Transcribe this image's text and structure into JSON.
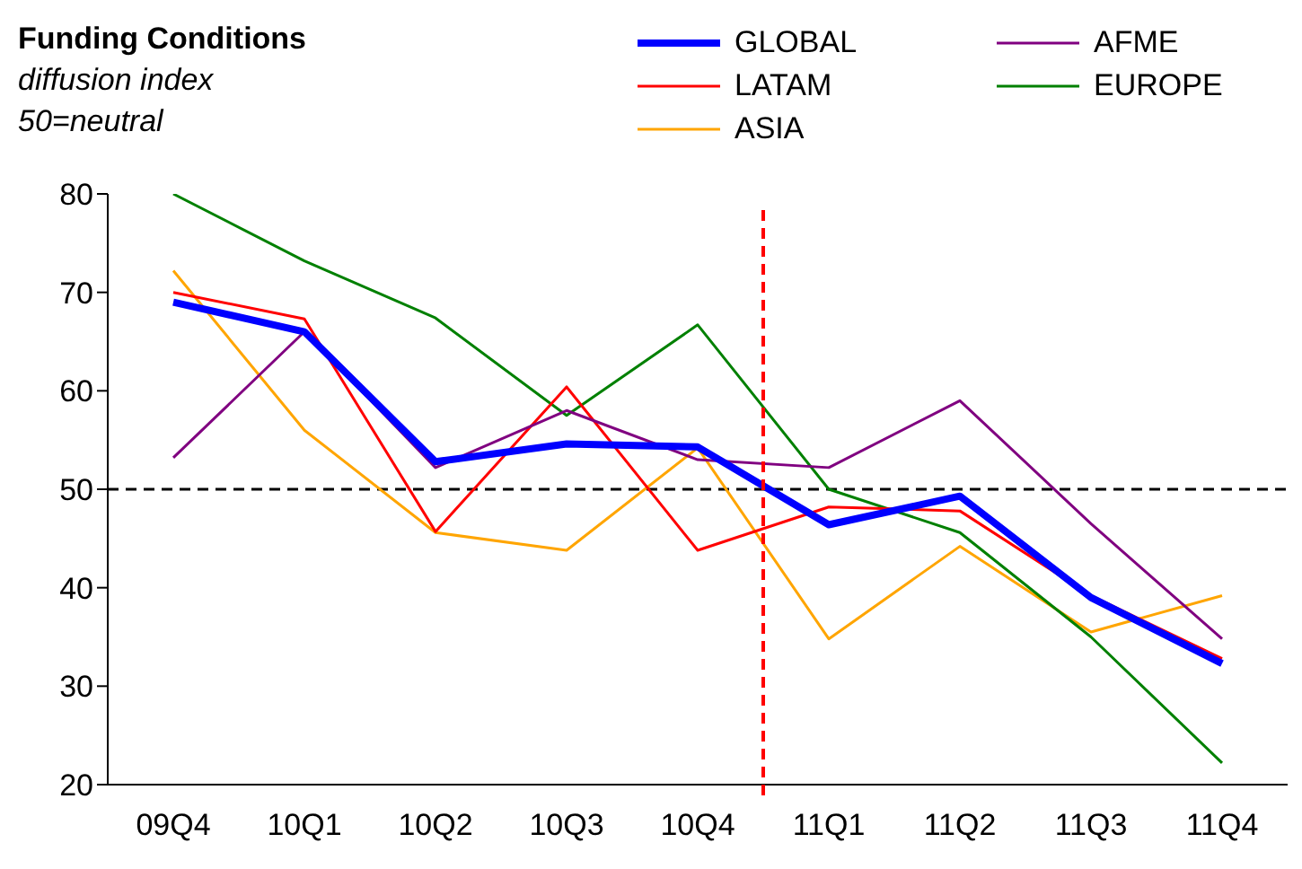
{
  "chart_data": {
    "type": "line",
    "title": "Funding Conditions",
    "subtitle": "diffusion index",
    "annotations": [
      "50=neutral"
    ],
    "categories": [
      "09Q4",
      "10Q1",
      "10Q2",
      "10Q3",
      "10Q4",
      "11Q1",
      "11Q2",
      "11Q3",
      "11Q4"
    ],
    "series": [
      {
        "name": "GLOBAL",
        "color": "#0000ff",
        "values": [
          69,
          66,
          52.8,
          54.6,
          54.3,
          46.4,
          49.3,
          39,
          32.3
        ]
      },
      {
        "name": "AFME",
        "color": "#800080",
        "values": [
          53.2,
          66,
          52.2,
          58,
          53,
          52.2,
          59,
          46.5,
          34.8
        ]
      },
      {
        "name": "LATAM",
        "color": "#ff0000",
        "values": [
          70,
          67.3,
          45.7,
          60.4,
          43.8,
          48.2,
          47.8,
          39.2,
          32.8
        ]
      },
      {
        "name": "EUROPE",
        "color": "#008000",
        "values": [
          80,
          73.2,
          67.4,
          57.5,
          66.7,
          50,
          45.6,
          35,
          22.2
        ]
      },
      {
        "name": "ASIA",
        "color": "#ffa500",
        "values": [
          72.2,
          56,
          45.6,
          43.8,
          54.2,
          34.8,
          44.2,
          35.5,
          39.2
        ]
      }
    ],
    "ylim": [
      20,
      80
    ],
    "yticks": [
      20,
      30,
      40,
      50,
      60,
      70,
      80
    ],
    "grid": false,
    "legend": "top right",
    "marker": "none",
    "line_style": "solid",
    "ref_lines": [
      {
        "axis": "y",
        "value": 50,
        "color": "#000000",
        "line_style": "dashed"
      }
    ]
  }
}
